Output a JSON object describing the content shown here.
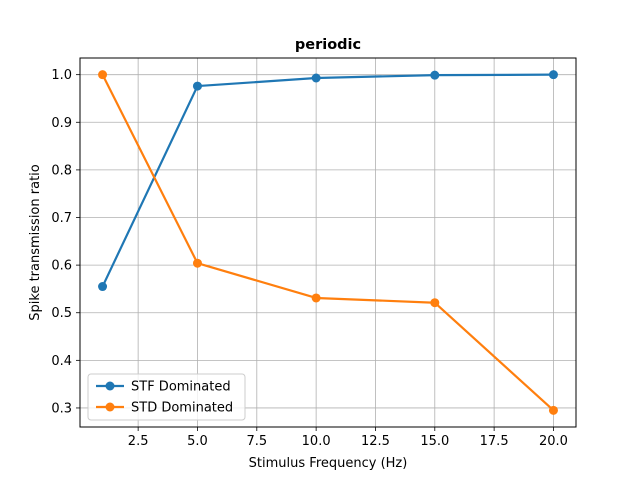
{
  "chart_data": {
    "type": "line",
    "title": "periodic",
    "xlabel": "Stimulus Frequency (Hz)",
    "ylabel": "Spike transmission ratio",
    "x": [
      1,
      5,
      10,
      15,
      20
    ],
    "xlim": [
      0.05,
      20.95
    ],
    "ylim": [
      0.26,
      1.035
    ],
    "xticks": [
      2.5,
      5.0,
      7.5,
      10.0,
      12.5,
      15.0,
      17.5,
      20.0
    ],
    "xtick_labels": [
      "2.5",
      "5.0",
      "7.5",
      "10.0",
      "12.5",
      "15.0",
      "17.5",
      "20.0"
    ],
    "yticks": [
      0.3,
      0.4,
      0.5,
      0.6,
      0.7,
      0.8,
      0.9,
      1.0
    ],
    "ytick_labels": [
      "0.3",
      "0.4",
      "0.5",
      "0.6",
      "0.7",
      "0.8",
      "0.9",
      "1.0"
    ],
    "grid": true,
    "legend_position": "lower-left",
    "series": [
      {
        "name": "STF Dominated",
        "color": "#1f77b4",
        "values": [
          0.555,
          0.976,
          0.993,
          0.999,
          1.0
        ]
      },
      {
        "name": "STD Dominated",
        "color": "#ff7f0e",
        "values": [
          1.0,
          0.604,
          0.531,
          0.521,
          0.295
        ]
      }
    ]
  }
}
